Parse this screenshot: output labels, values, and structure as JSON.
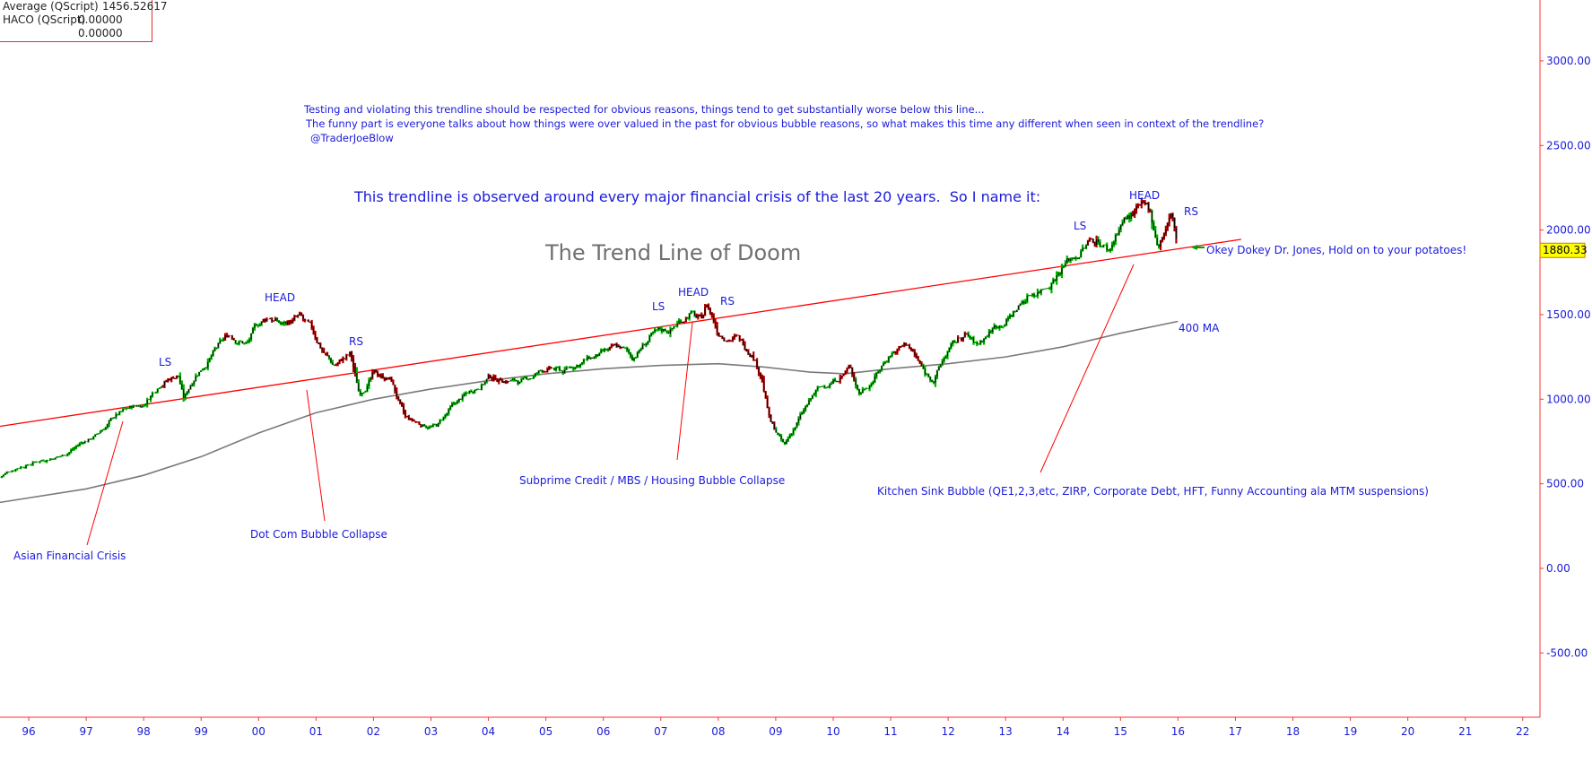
{
  "legend": {
    "items": [
      {
        "name": "Average (QScript)",
        "value": "1456.52617"
      },
      {
        "name": "HACO (QScript)",
        "value": "0.00000"
      },
      {
        "name": "",
        "value": "0.00000"
      }
    ]
  },
  "current_price_label": "1880.33",
  "annotations": {
    "note_line1": "Testing and violating this trendline should be respected for obvious reasons, things tend to get substantially worse below this line...",
    "note_line2": "The funny part is everyone talks about how things were over valued in the past for obvious bubble reasons, so what makes this time any different when seen in context of the trendline?",
    "note_author": "@TraderJoeBlow",
    "trendline_intro": "This trendline is observed around every major financial crisis of the last 20 years.  So I name it:",
    "trendline_title": "The Trend Line of Doom",
    "okey_dokey": "Okey Dokey Dr. Jones, Hold on to your potatoes!",
    "ma_label": "400 MA",
    "asian": "Asian Financial Crisis",
    "dotcom": "Dot Com Bubble Collapse",
    "subprime": "Subprime Credit / MBS / Housing Bubble Collapse",
    "kitchen_sink": "Kitchen Sink Bubble (QE1,2,3,etc, ZIRP, Corporate Debt, HFT, Funny Accounting ala MTM suspensions)",
    "hs1": {
      "ls": "LS",
      "head": "HEAD",
      "rs": "RS"
    },
    "hs2": {
      "ls": "LS",
      "head": "HEAD",
      "rs": "RS"
    },
    "hs3": {
      "ls": "LS",
      "head": "HEAD",
      "rs": "RS"
    }
  },
  "colors": {
    "annotation": "#1a1adb",
    "trendline": "#ff0000",
    "ma": "#7a7a7a",
    "bar_up": "#00b000",
    "bar_down": "#b00000",
    "bar_body": "#000000",
    "price_tag_bg": "#ffff00",
    "title_gray": "#707070"
  },
  "chart_data": {
    "type": "line",
    "title": "The Trend Line of Doom",
    "x_axis": {
      "ticks": [
        "96",
        "97",
        "98",
        "99",
        "00",
        "01",
        "02",
        "03",
        "04",
        "05",
        "06",
        "07",
        "08",
        "09",
        "10",
        "11",
        "12",
        "13",
        "14",
        "15",
        "16",
        "17",
        "18",
        "19",
        "20",
        "21",
        "22"
      ],
      "range": [
        1995.5,
        2022.3
      ]
    },
    "y_axis": {
      "ticks": [
        "-500.00",
        "0.00",
        "500.00",
        "1000.00",
        "1500.00",
        "2000.00",
        "2500.00",
        "3000.00"
      ],
      "range": [
        -880,
        3360
      ],
      "position": "right"
    },
    "series": [
      {
        "style": "haco-bars",
        "points": [
          [
            1995.5,
            540
          ],
          [
            1995.8,
            600
          ],
          [
            1996.0,
            620
          ],
          [
            1996.3,
            650
          ],
          [
            1996.6,
            670
          ],
          [
            1996.9,
            740
          ],
          [
            1997.2,
            790
          ],
          [
            1997.5,
            900
          ],
          [
            1997.8,
            950
          ],
          [
            1998.0,
            970
          ],
          [
            1998.3,
            1110
          ],
          [
            1998.6,
            1150
          ],
          [
            1998.7,
            1000
          ],
          [
            1998.9,
            1150
          ],
          [
            1999.2,
            1270
          ],
          [
            1999.5,
            1380
          ],
          [
            1999.8,
            1330
          ],
          [
            2000.0,
            1440
          ],
          [
            2000.2,
            1490
          ],
          [
            2000.4,
            1440
          ],
          [
            2000.7,
            1480
          ],
          [
            2000.9,
            1400
          ],
          [
            2001.1,
            1300
          ],
          [
            2001.3,
            1200
          ],
          [
            2001.6,
            1260
          ],
          [
            2001.75,
            1030
          ],
          [
            2002.0,
            1150
          ],
          [
            2002.3,
            1120
          ],
          [
            2002.55,
            880
          ],
          [
            2002.8,
            850
          ],
          [
            2003.1,
            840
          ],
          [
            2003.4,
            960
          ],
          [
            2003.7,
            1050
          ],
          [
            2004.0,
            1130
          ],
          [
            2004.3,
            1120
          ],
          [
            2004.6,
            1100
          ],
          [
            2005.0,
            1180
          ],
          [
            2005.3,
            1160
          ],
          [
            2005.6,
            1220
          ],
          [
            2006.0,
            1260
          ],
          [
            2006.3,
            1300
          ],
          [
            2006.5,
            1240
          ],
          [
            2006.8,
            1360
          ],
          [
            2007.2,
            1420
          ],
          [
            2007.5,
            1520
          ],
          [
            2007.7,
            1460
          ],
          [
            2007.8,
            1560
          ],
          [
            2008.0,
            1400
          ],
          [
            2008.3,
            1370
          ],
          [
            2008.6,
            1280
          ],
          [
            2008.75,
            1150
          ],
          [
            2008.9,
            870
          ],
          [
            2009.15,
            720
          ],
          [
            2009.4,
            880
          ],
          [
            2009.7,
            1040
          ],
          [
            2010.0,
            1110
          ],
          [
            2010.3,
            1190
          ],
          [
            2010.45,
            1040
          ],
          [
            2010.7,
            1130
          ],
          [
            2011.0,
            1280
          ],
          [
            2011.3,
            1330
          ],
          [
            2011.6,
            1150
          ],
          [
            2011.75,
            1120
          ],
          [
            2012.0,
            1290
          ],
          [
            2012.3,
            1380
          ],
          [
            2012.5,
            1310
          ],
          [
            2012.8,
            1430
          ],
          [
            2013.1,
            1500
          ],
          [
            2013.4,
            1620
          ],
          [
            2013.7,
            1680
          ],
          [
            2014.0,
            1800
          ],
          [
            2014.3,
            1880
          ],
          [
            2014.6,
            1960
          ],
          [
            2014.8,
            1880
          ],
          [
            2015.0,
            2050
          ],
          [
            2015.3,
            2110
          ],
          [
            2015.5,
            2100
          ],
          [
            2015.65,
            1920
          ],
          [
            2015.9,
            2090
          ],
          [
            2016.0,
            1880
          ]
        ]
      },
      {
        "name": "400 MA",
        "style": "ma",
        "points": [
          [
            1995.5,
            390
          ],
          [
            1997.0,
            470
          ],
          [
            1998.0,
            550
          ],
          [
            1999.0,
            660
          ],
          [
            2000.0,
            800
          ],
          [
            2001.0,
            920
          ],
          [
            2002.0,
            1000
          ],
          [
            2003.0,
            1060
          ],
          [
            2004.0,
            1110
          ],
          [
            2005.0,
            1150
          ],
          [
            2006.0,
            1180
          ],
          [
            2007.0,
            1200
          ],
          [
            2008.0,
            1210
          ],
          [
            2008.8,
            1190
          ],
          [
            2009.6,
            1160
          ],
          [
            2010.2,
            1150
          ],
          [
            2011.0,
            1180
          ],
          [
            2012.0,
            1210
          ],
          [
            2013.0,
            1250
          ],
          [
            2014.0,
            1310
          ],
          [
            2015.0,
            1390
          ],
          [
            2016.0,
            1460
          ]
        ]
      },
      {
        "name": "trendline",
        "style": "trendline",
        "points": [
          [
            1995.5,
            840
          ],
          [
            2017.1,
            1945
          ]
        ]
      }
    ],
    "grid": false,
    "legend_position": "top-left"
  }
}
